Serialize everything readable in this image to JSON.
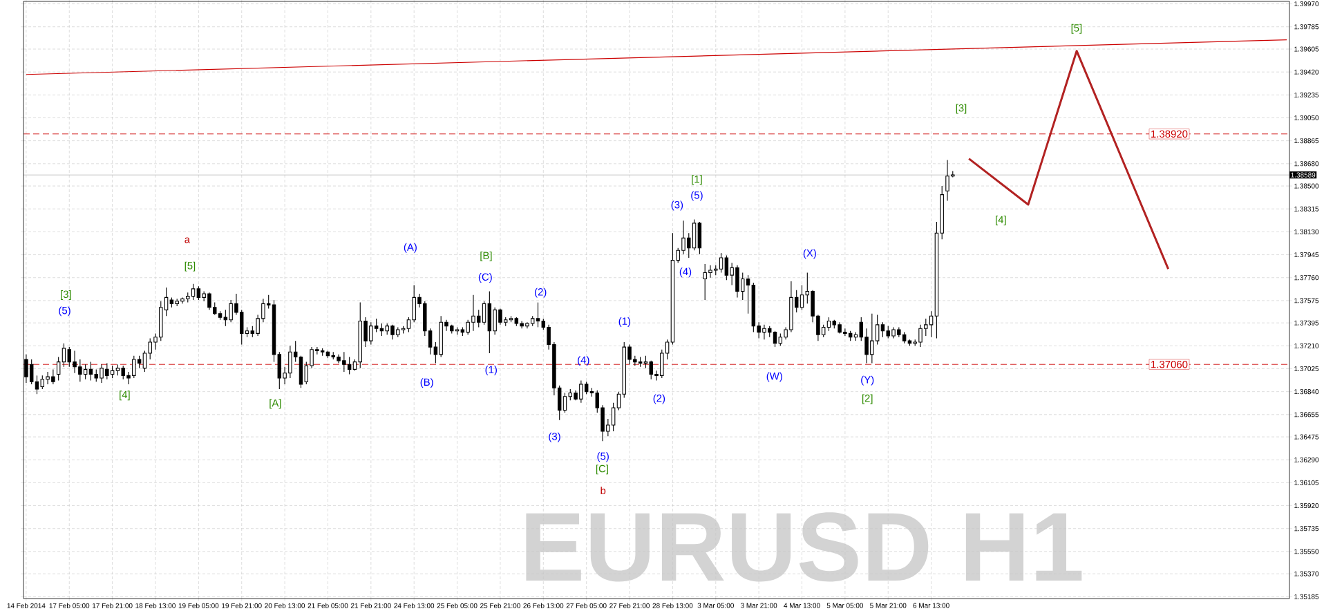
{
  "chart_data": {
    "type": "candlestick",
    "title": "EURUSD H1",
    "color": "#000000",
    "grid": true,
    "ylim": [
      1.3517,
      1.3999
    ],
    "yticks": [
      {
        "value": 1.35185,
        "label": "1.35185"
      },
      {
        "value": 1.3537,
        "label": "1.35370"
      },
      {
        "value": 1.3555,
        "label": "1.35550"
      },
      {
        "value": 1.35735,
        "label": "1.35735"
      },
      {
        "value": 1.3592,
        "label": "1.35920"
      },
      {
        "value": 1.36105,
        "label": "1.36105"
      },
      {
        "value": 1.3629,
        "label": "1.36290"
      },
      {
        "value": 1.36475,
        "label": "1.36475"
      },
      {
        "value": 1.36655,
        "label": "1.36655"
      },
      {
        "value": 1.3684,
        "label": "1.36840"
      },
      {
        "value": 1.37025,
        "label": "1.37025"
      },
      {
        "value": 1.3721,
        "label": "1.37210"
      },
      {
        "value": 1.37395,
        "label": "1.37395"
      },
      {
        "value": 1.37575,
        "label": "1.37575"
      },
      {
        "value": 1.3776,
        "label": "1.37760"
      },
      {
        "value": 1.37945,
        "label": "1.37945"
      },
      {
        "value": 1.3813,
        "label": "1.38130"
      },
      {
        "value": 1.38315,
        "label": "1.38315"
      },
      {
        "value": 1.385,
        "label": "1.38500"
      },
      {
        "value": 1.3868,
        "label": "1.38680"
      },
      {
        "value": 1.38865,
        "label": "1.38865"
      },
      {
        "value": 1.3905,
        "label": "1.39050"
      },
      {
        "value": 1.39235,
        "label": "1.39235"
      },
      {
        "value": 1.3942,
        "label": "1.39420"
      },
      {
        "value": 1.39605,
        "label": "1.39605"
      },
      {
        "value": 1.39785,
        "label": "1.39785"
      },
      {
        "value": 1.3997,
        "label": "1.39970"
      }
    ],
    "categories": [
      "14 Feb 2014",
      null,
      null,
      null,
      null,
      null,
      null,
      null,
      "17 Feb 05:00",
      null,
      null,
      null,
      null,
      null,
      null,
      null,
      "17 Feb 21:00",
      null,
      null,
      null,
      null,
      null,
      null,
      null,
      "18 Feb 13:00",
      null,
      null,
      null,
      null,
      null,
      null,
      null,
      "19 Feb 05:00",
      null,
      null,
      null,
      null,
      null,
      null,
      null,
      "19 Feb 21:00",
      null,
      null,
      null,
      null,
      null,
      null,
      null,
      "20 Feb 13:00",
      null,
      null,
      null,
      null,
      null,
      null,
      null,
      "21 Feb 05:00",
      null,
      null,
      null,
      null,
      null,
      null,
      null,
      "21 Feb 21:00",
      null,
      null,
      null,
      null,
      null,
      null,
      null,
      "24 Feb 13:00",
      null,
      null,
      null,
      null,
      null,
      null,
      null,
      "25 Feb 05:00",
      null,
      null,
      null,
      null,
      null,
      null,
      null,
      "25 Feb 21:00",
      null,
      null,
      null,
      null,
      null,
      null,
      null,
      "26 Feb 13:00",
      null,
      null,
      null,
      null,
      null,
      null,
      null,
      "27 Feb 05:00",
      null,
      null,
      null,
      null,
      null,
      null,
      null,
      "27 Feb 21:00",
      null,
      null,
      null,
      null,
      null,
      null,
      null,
      "28 Feb 13:00",
      null,
      null,
      null,
      null,
      null,
      null,
      null,
      "3 Mar 05:00",
      null,
      null,
      null,
      null,
      null,
      null,
      null,
      "3 Mar 21:00",
      null,
      null,
      null,
      null,
      null,
      null,
      null,
      "4 Mar 13:00",
      null,
      null,
      null,
      null,
      null,
      null,
      null,
      "5 Mar 05:00",
      null,
      null,
      null,
      null,
      null,
      null,
      null,
      "5 Mar 21:00",
      null,
      null,
      null,
      null,
      null,
      null,
      null,
      "6 Mar 13:00",
      null,
      null,
      null,
      null,
      null,
      null,
      null,
      null,
      null,
      null,
      null,
      null,
      null,
      null,
      null,
      null,
      null,
      null,
      null,
      null,
      null,
      null,
      null,
      null,
      null,
      null,
      null,
      null,
      null,
      null,
      null,
      null,
      null,
      null,
      null,
      null,
      null,
      null,
      null,
      null,
      null,
      null,
      null,
      null,
      null,
      null,
      null,
      null,
      null,
      null,
      null,
      null,
      null,
      null,
      null,
      null,
      null,
      null,
      null,
      null,
      null,
      null,
      null,
      null,
      null,
      null
    ],
    "ohlc": [
      [
        1.371,
        1.3714,
        1.3691,
        1.3696
      ],
      [
        1.3706,
        1.371,
        1.369,
        1.3692
      ],
      [
        1.3692,
        1.3697,
        1.3682,
        1.3686
      ],
      [
        1.3688,
        1.3697,
        1.3686,
        1.3694
      ],
      [
        1.3694,
        1.37,
        1.369,
        1.3696
      ],
      [
        1.3696,
        1.3702,
        1.369,
        1.3692
      ],
      [
        1.3698,
        1.3712,
        1.3693,
        1.3708
      ],
      [
        1.3708,
        1.3723,
        1.3704,
        1.3719
      ],
      [
        1.3718,
        1.372,
        1.3704,
        1.3708
      ],
      [
        1.3708,
        1.3717,
        1.3699,
        1.3704
      ],
      [
        1.3704,
        1.371,
        1.3692,
        1.3698
      ],
      [
        1.3698,
        1.3706,
        1.3694,
        1.3702
      ],
      [
        1.3702,
        1.3708,
        1.3693,
        1.3698
      ],
      [
        1.3698,
        1.3702,
        1.3692,
        1.3695
      ],
      [
        1.3695,
        1.3706,
        1.3691,
        1.3703
      ],
      [
        1.3702,
        1.3707,
        1.3694,
        1.3697
      ],
      [
        1.3698,
        1.3705,
        1.3695,
        1.3701
      ],
      [
        1.3701,
        1.3706,
        1.3697,
        1.3703
      ],
      [
        1.3703,
        1.3705,
        1.3694,
        1.3697
      ],
      [
        1.3697,
        1.37,
        1.369,
        1.3695
      ],
      [
        1.3697,
        1.3713,
        1.3695,
        1.371
      ],
      [
        1.371,
        1.3713,
        1.3703,
        1.3707
      ],
      [
        1.3703,
        1.3717,
        1.37,
        1.3715
      ],
      [
        1.3715,
        1.3727,
        1.371,
        1.3724
      ],
      [
        1.3724,
        1.3731,
        1.3718,
        1.3728
      ],
      [
        1.3728,
        1.3757,
        1.3725,
        1.3752
      ],
      [
        1.375,
        1.3768,
        1.3745,
        1.376
      ],
      [
        1.3758,
        1.376,
        1.3752,
        1.3755
      ],
      [
        1.3755,
        1.3759,
        1.3753,
        1.3757
      ],
      [
        1.3757,
        1.376,
        1.3755,
        1.3759
      ],
      [
        1.3759,
        1.3764,
        1.3756,
        1.3761
      ],
      [
        1.3761,
        1.3771,
        1.3758,
        1.3767
      ],
      [
        1.3767,
        1.3769,
        1.3758,
        1.376
      ],
      [
        1.376,
        1.3765,
        1.3757,
        1.3763
      ],
      [
        1.3763,
        1.3764,
        1.375,
        1.3752
      ],
      [
        1.3752,
        1.3756,
        1.3746,
        1.3747
      ],
      [
        1.3747,
        1.3749,
        1.3742,
        1.3744
      ],
      [
        1.3744,
        1.375,
        1.3737,
        1.3742
      ],
      [
        1.3742,
        1.3758,
        1.374,
        1.3755
      ],
      [
        1.3755,
        1.3763,
        1.3746,
        1.3748
      ],
      [
        1.3748,
        1.375,
        1.3722,
        1.3731
      ],
      [
        1.3731,
        1.3736,
        1.3728,
        1.3733
      ],
      [
        1.3733,
        1.3737,
        1.3728,
        1.3731
      ],
      [
        1.3731,
        1.3746,
        1.3729,
        1.3743
      ],
      [
        1.3743,
        1.3759,
        1.374,
        1.3755
      ],
      [
        1.3755,
        1.3762,
        1.3751,
        1.3754
      ],
      [
        1.3754,
        1.3758,
        1.3708,
        1.3714
      ],
      [
        1.3714,
        1.3716,
        1.3686,
        1.3695
      ],
      [
        1.3695,
        1.3704,
        1.369,
        1.3699
      ],
      [
        1.3699,
        1.3721,
        1.3695,
        1.3716
      ],
      [
        1.3716,
        1.3725,
        1.3708,
        1.3712
      ],
      [
        1.3712,
        1.3713,
        1.3687,
        1.369
      ],
      [
        1.3692,
        1.3708,
        1.369,
        1.3705
      ],
      [
        1.3705,
        1.372,
        1.3703,
        1.3718
      ],
      [
        1.3718,
        1.372,
        1.3714,
        1.3717
      ],
      [
        1.3717,
        1.3719,
        1.3713,
        1.3716
      ],
      [
        1.3716,
        1.3717,
        1.3711,
        1.3713
      ],
      [
        1.3713,
        1.3716,
        1.371,
        1.3712
      ],
      [
        1.3712,
        1.3714,
        1.3707,
        1.3709
      ],
      [
        1.3709,
        1.3716,
        1.37,
        1.3706
      ],
      [
        1.3706,
        1.3712,
        1.3698,
        1.3702
      ],
      [
        1.3702,
        1.371,
        1.3701,
        1.3708
      ],
      [
        1.3708,
        1.3756,
        1.3703,
        1.3741
      ],
      [
        1.3741,
        1.3744,
        1.372,
        1.3725
      ],
      [
        1.3725,
        1.374,
        1.3722,
        1.3737
      ],
      [
        1.3737,
        1.3743,
        1.3732,
        1.3735
      ],
      [
        1.3735,
        1.3739,
        1.3729,
        1.3733
      ],
      [
        1.3733,
        1.3739,
        1.373,
        1.3737
      ],
      [
        1.3737,
        1.3738,
        1.3726,
        1.373
      ],
      [
        1.373,
        1.3736,
        1.3728,
        1.3734
      ],
      [
        1.3734,
        1.3737,
        1.3731,
        1.3735
      ],
      [
        1.3735,
        1.3744,
        1.3732,
        1.3742
      ],
      [
        1.3742,
        1.377,
        1.374,
        1.376
      ],
      [
        1.376,
        1.3763,
        1.3752,
        1.3755
      ],
      [
        1.3755,
        1.3757,
        1.3729,
        1.3733
      ],
      [
        1.3733,
        1.3735,
        1.3714,
        1.372
      ],
      [
        1.372,
        1.3724,
        1.3707,
        1.3714
      ],
      [
        1.3714,
        1.3745,
        1.3712,
        1.374
      ],
      [
        1.374,
        1.3742,
        1.3733,
        1.3737
      ],
      [
        1.3737,
        1.3738,
        1.3731,
        1.3733
      ],
      [
        1.3733,
        1.3736,
        1.373,
        1.3734
      ],
      [
        1.3734,
        1.3736,
        1.3729,
        1.3732
      ],
      [
        1.3732,
        1.3742,
        1.373,
        1.374
      ],
      [
        1.374,
        1.3762,
        1.3733,
        1.3745
      ],
      [
        1.3745,
        1.375,
        1.3736,
        1.374
      ],
      [
        1.374,
        1.3757,
        1.3738,
        1.3755
      ],
      [
        1.3755,
        1.3765,
        1.3715,
        1.3733
      ],
      [
        1.3733,
        1.3752,
        1.373,
        1.375
      ],
      [
        1.375,
        1.3751,
        1.3738,
        1.374
      ],
      [
        1.374,
        1.3744,
        1.3737,
        1.3742
      ],
      [
        1.3742,
        1.3745,
        1.374,
        1.3743
      ],
      [
        1.3743,
        1.3744,
        1.3737,
        1.3739
      ],
      [
        1.3739,
        1.3741,
        1.3735,
        1.3737
      ],
      [
        1.3737,
        1.374,
        1.3735,
        1.3739
      ],
      [
        1.3739,
        1.3745,
        1.3737,
        1.3743
      ],
      [
        1.3743,
        1.3756,
        1.3736,
        1.3741
      ],
      [
        1.3741,
        1.3743,
        1.3734,
        1.3736
      ],
      [
        1.3736,
        1.3738,
        1.3718,
        1.3722
      ],
      [
        1.3722,
        1.3724,
        1.3681,
        1.3687
      ],
      [
        1.3687,
        1.3689,
        1.3661,
        1.3669
      ],
      [
        1.3669,
        1.3683,
        1.3667,
        1.368
      ],
      [
        1.368,
        1.3686,
        1.3677,
        1.3683
      ],
      [
        1.3683,
        1.3685,
        1.3677,
        1.3678
      ],
      [
        1.3678,
        1.3693,
        1.3675,
        1.369
      ],
      [
        1.369,
        1.3692,
        1.3682,
        1.3684
      ],
      [
        1.3684,
        1.3687,
        1.368,
        1.3683
      ],
      [
        1.3683,
        1.3685,
        1.3667,
        1.3671
      ],
      [
        1.3671,
        1.3673,
        1.3644,
        1.3652
      ],
      [
        1.3652,
        1.3662,
        1.3648,
        1.3657
      ],
      [
        1.3657,
        1.3675,
        1.3652,
        1.3671
      ],
      [
        1.3671,
        1.3684,
        1.3669,
        1.3682
      ],
      [
        1.3682,
        1.3724,
        1.3679,
        1.372
      ],
      [
        1.372,
        1.3722,
        1.3706,
        1.371
      ],
      [
        1.371,
        1.3713,
        1.3705,
        1.3708
      ],
      [
        1.3708,
        1.3712,
        1.3704,
        1.3707
      ],
      [
        1.3707,
        1.3713,
        1.3703,
        1.3708
      ],
      [
        1.3708,
        1.3709,
        1.3694,
        1.3698
      ],
      [
        1.3698,
        1.3701,
        1.3693,
        1.3697
      ],
      [
        1.3697,
        1.3718,
        1.3695,
        1.3715
      ],
      [
        1.3715,
        1.3726,
        1.371,
        1.3724
      ],
      [
        1.3724,
        1.3812,
        1.3722,
        1.379
      ],
      [
        1.379,
        1.38,
        1.3788,
        1.3798
      ],
      [
        1.3798,
        1.3822,
        1.3795,
        1.3808
      ],
      [
        1.3808,
        1.3812,
        1.3792,
        1.38
      ],
      [
        1.38,
        1.3823,
        1.3798,
        1.382
      ],
      [
        1.382,
        1.3821,
        1.3795,
        1.38
      ],
      [
        1.3775,
        1.3787,
        1.3758,
        1.378
      ],
      [
        1.378,
        1.3786,
        1.3776,
        1.3782
      ],
      [
        1.3782,
        1.3786,
        1.3778,
        1.3783
      ],
      [
        1.3783,
        1.3796,
        1.378,
        1.3792
      ],
      [
        1.3792,
        1.3794,
        1.3774,
        1.3778
      ],
      [
        1.3778,
        1.3788,
        1.377,
        1.3784
      ],
      [
        1.3784,
        1.3786,
        1.376,
        1.3765
      ],
      [
        1.3765,
        1.378,
        1.3758,
        1.3775
      ],
      [
        1.3775,
        1.3778,
        1.3747,
        1.377
      ],
      [
        1.377,
        1.3772,
        1.3732,
        1.3737
      ],
      [
        1.3737,
        1.374,
        1.3727,
        1.3732
      ],
      [
        1.3732,
        1.3738,
        1.3726,
        1.3735
      ],
      [
        1.3735,
        1.3737,
        1.3728,
        1.3732
      ],
      [
        1.3732,
        1.3733,
        1.372,
        1.3723
      ],
      [
        1.3723,
        1.3731,
        1.3721,
        1.3728
      ],
      [
        1.3728,
        1.3736,
        1.3726,
        1.3734
      ],
      [
        1.3734,
        1.3773,
        1.3732,
        1.376
      ],
      [
        1.376,
        1.3766,
        1.3748,
        1.3752
      ],
      [
        1.3752,
        1.377,
        1.375,
        1.3762
      ],
      [
        1.3762,
        1.378,
        1.3755,
        1.3765
      ],
      [
        1.3765,
        1.3766,
        1.374,
        1.3745
      ],
      [
        1.3745,
        1.3746,
        1.3725,
        1.373
      ],
      [
        1.373,
        1.3738,
        1.3728,
        1.3736
      ],
      [
        1.3736,
        1.3744,
        1.3733,
        1.3741
      ],
      [
        1.3741,
        1.3742,
        1.3735,
        1.3738
      ],
      [
        1.3738,
        1.374,
        1.3731,
        1.3732
      ],
      [
        1.3732,
        1.3735,
        1.3729,
        1.3731
      ],
      [
        1.3731,
        1.3733,
        1.3725,
        1.3728
      ],
      [
        1.3728,
        1.3732,
        1.3725,
        1.373
      ],
      [
        1.374,
        1.3744,
        1.3725,
        1.3728
      ],
      [
        1.3728,
        1.3735,
        1.3707,
        1.3714
      ],
      [
        1.3714,
        1.3747,
        1.3707,
        1.3725
      ],
      [
        1.3725,
        1.3746,
        1.3722,
        1.3738
      ],
      [
        1.3738,
        1.374,
        1.3728,
        1.3733
      ],
      [
        1.3733,
        1.3737,
        1.3727,
        1.3729
      ],
      [
        1.3729,
        1.3736,
        1.3727,
        1.3734
      ],
      [
        1.3734,
        1.3736,
        1.3728,
        1.373
      ],
      [
        1.373,
        1.3732,
        1.3723,
        1.3725
      ],
      [
        1.3725,
        1.3726,
        1.3721,
        1.3723
      ],
      [
        1.3723,
        1.3726,
        1.3721,
        1.3724
      ],
      [
        1.3724,
        1.3738,
        1.372,
        1.3735
      ],
      [
        1.3735,
        1.3743,
        1.3729,
        1.3738
      ],
      [
        1.3738,
        1.3749,
        1.3728,
        1.3745
      ],
      [
        1.3745,
        1.3821,
        1.3727,
        1.3812
      ],
      [
        1.3812,
        1.385,
        1.3807,
        1.3843
      ],
      [
        1.3846,
        1.3871,
        1.3838,
        1.3858
      ],
      [
        1.3858,
        1.3862,
        1.3857,
        1.3859
      ],
      null,
      null,
      null,
      null,
      null,
      null,
      null,
      null,
      null,
      null,
      null,
      null,
      null,
      null,
      null,
      null,
      null,
      null,
      null,
      null,
      null,
      null,
      null,
      null,
      null,
      null,
      null,
      null,
      null,
      null,
      null,
      null,
      null,
      null,
      null,
      null,
      null,
      null,
      null,
      null,
      null,
      null,
      null,
      null,
      null,
      null,
      null,
      null,
      null,
      null,
      null,
      null,
      null,
      null,
      null,
      null,
      null,
      null,
      null,
      null,
      null,
      null
    ],
    "series": [
      {
        "type": "line",
        "color": "#cc0000",
        "values": [
          1.394,
          null,
          null,
          null,
          null,
          null,
          null,
          null,
          null,
          null,
          null,
          null,
          null,
          null,
          null,
          null,
          null,
          null,
          null,
          null,
          null,
          null,
          null,
          null,
          null,
          null,
          null,
          null,
          null,
          null,
          null,
          null,
          null,
          null,
          null,
          null,
          null,
          null,
          null,
          null,
          null,
          null,
          null,
          null,
          null,
          null,
          null,
          null,
          null,
          null,
          null,
          null,
          null,
          null,
          null,
          null,
          null,
          null,
          null,
          null,
          null,
          null,
          null,
          null,
          null,
          null,
          null,
          null,
          null,
          null,
          null,
          null,
          null,
          null,
          null,
          null,
          null,
          null,
          null,
          null,
          null,
          null,
          null,
          null,
          null,
          null,
          null,
          null,
          null,
          null,
          null,
          null,
          null,
          null,
          null,
          null,
          null,
          null,
          null,
          null,
          null,
          null,
          null,
          null,
          null,
          null,
          null,
          null,
          null,
          null,
          null,
          null,
          null,
          null,
          null,
          null,
          null,
          null,
          null,
          null,
          null,
          null,
          null,
          null,
          null,
          null,
          null,
          null,
          null,
          null,
          null,
          null,
          null,
          null,
          null,
          null,
          null,
          null,
          null,
          null,
          null,
          null,
          null,
          null,
          null,
          null,
          null,
          null,
          null,
          null,
          null,
          null,
          null,
          null,
          null,
          null,
          null,
          null,
          null,
          null,
          null,
          null,
          null,
          null,
          null,
          null,
          null,
          null,
          null,
          null,
          null,
          null,
          null,
          null,
          null,
          null,
          null,
          null,
          null,
          null,
          null,
          null,
          null,
          null,
          null,
          null,
          null,
          null,
          null,
          null,
          null,
          null,
          null,
          null,
          null,
          null,
          null,
          null,
          null,
          null,
          null,
          null,
          null,
          null,
          null,
          null,
          null,
          null,
          null,
          null,
          null,
          null,
          null,
          null,
          null,
          null,
          null,
          null,
          null,
          null,
          null,
          null,
          null,
          null,
          null,
          null,
          null,
          null,
          null,
          null,
          null,
          null,
          null,
          null,
          1.3968
        ]
      },
      {
        "type": "line",
        "color": "#b22222",
        "values": [
          null,
          null,
          null,
          null,
          null,
          null,
          null,
          null,
          null,
          null,
          null,
          null,
          null,
          null,
          null,
          null,
          null,
          null,
          null,
          null,
          null,
          null,
          null,
          null,
          null,
          null,
          null,
          null,
          null,
          null,
          null,
          null,
          null,
          null,
          null,
          null,
          null,
          null,
          null,
          null,
          null,
          null,
          null,
          null,
          null,
          null,
          null,
          null,
          null,
          null,
          null,
          null,
          null,
          null,
          null,
          null,
          null,
          null,
          null,
          null,
          null,
          null,
          null,
          null,
          null,
          null,
          null,
          null,
          null,
          null,
          null,
          null,
          null,
          null,
          null,
          null,
          null,
          null,
          null,
          null,
          null,
          null,
          null,
          null,
          null,
          null,
          null,
          null,
          null,
          null,
          null,
          null,
          null,
          null,
          null,
          null,
          null,
          null,
          null,
          null,
          null,
          null,
          null,
          null,
          null,
          null,
          null,
          null,
          null,
          null,
          null,
          null,
          null,
          null,
          null,
          null,
          null,
          null,
          null,
          null,
          null,
          null,
          null,
          null,
          null,
          null,
          null,
          null,
          null,
          null,
          null,
          null,
          null,
          null,
          null,
          null,
          null,
          null,
          null,
          null,
          null,
          null,
          null,
          null,
          null,
          null,
          null,
          null,
          null,
          null,
          null,
          null,
          null,
          null,
          null,
          null,
          null,
          null,
          null,
          null,
          null,
          null,
          null,
          null,
          null,
          null,
          null,
          null,
          null,
          null,
          null,
          null,
          null,
          null,
          null,
          1.3872,
          null,
          null,
          null,
          null,
          null,
          null,
          null,
          null,
          null,
          null,
          1.3835,
          null,
          null,
          null,
          null,
          null,
          null,
          null,
          null,
          1.3959,
          null,
          null,
          null,
          null,
          null,
          null,
          null,
          null,
          null,
          null,
          null,
          null,
          null,
          null,
          null,
          null,
          1.3783,
          null,
          null,
          null,
          null,
          null,
          null,
          null,
          null,
          null,
          null,
          null,
          null,
          null,
          null,
          null,
          null,
          null,
          null,
          null,
          null,
          null,
          null
        ]
      }
    ],
    "ref_lines": [
      {
        "axis": "y",
        "value": 1.3892,
        "label": "1.38920",
        "color": "#cc0000",
        "line_style": "dashed"
      },
      {
        "axis": "y",
        "value": 1.3706,
        "label": "1.37060",
        "color": "#cc0000",
        "line_style": "dashed"
      },
      {
        "axis": "y",
        "value": 1.38589,
        "label": "1.38589",
        "color": "#c0c0c0",
        "line_style": "solid"
      }
    ],
    "annotations": [
      "[3]",
      "(5)",
      "[4]",
      "a",
      "[5]",
      "[A]",
      "(A)",
      "(B)",
      "[B]",
      "(C)",
      "(1)",
      "(2)",
      "(3)",
      "(4)",
      "(5)",
      "[C]",
      "b",
      "(1)",
      "(2)",
      "(3)",
      "[1]",
      "(5)",
      "(4)",
      "(W)",
      "(X)",
      "(Y)",
      "[2]",
      "[3]",
      "[4]",
      "[5]"
    ]
  }
}
